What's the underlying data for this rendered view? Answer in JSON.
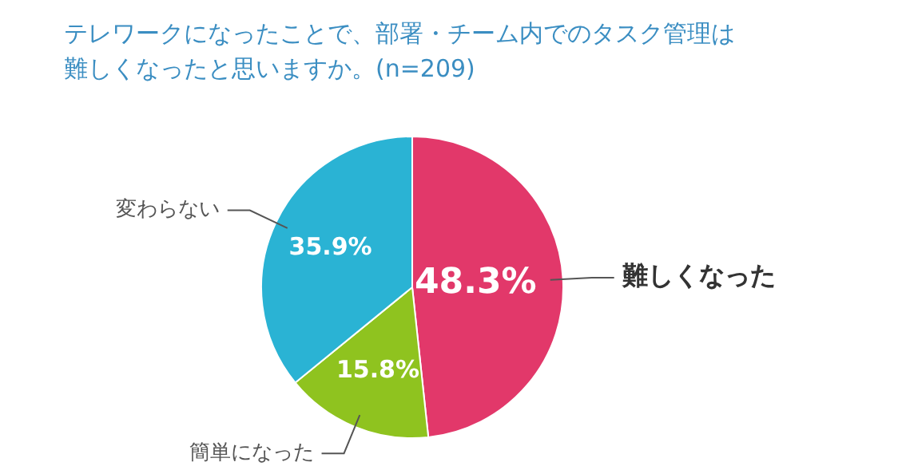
{
  "chart_data": {
    "type": "pie",
    "title": "テレワークになったことで、部署・チーム内でのタスク管理は難しくなったと思いますか。(n=209)",
    "categories": [
      "難しくなった",
      "簡単になった",
      "変わらない"
    ],
    "values": [
      48.3,
      15.8,
      35.9
    ],
    "colors": [
      "#e2386a",
      "#8fc31f",
      "#2ab3d4"
    ],
    "value_labels": [
      "48.3%",
      "15.8%",
      "35.9%"
    ],
    "legend": false
  }
}
